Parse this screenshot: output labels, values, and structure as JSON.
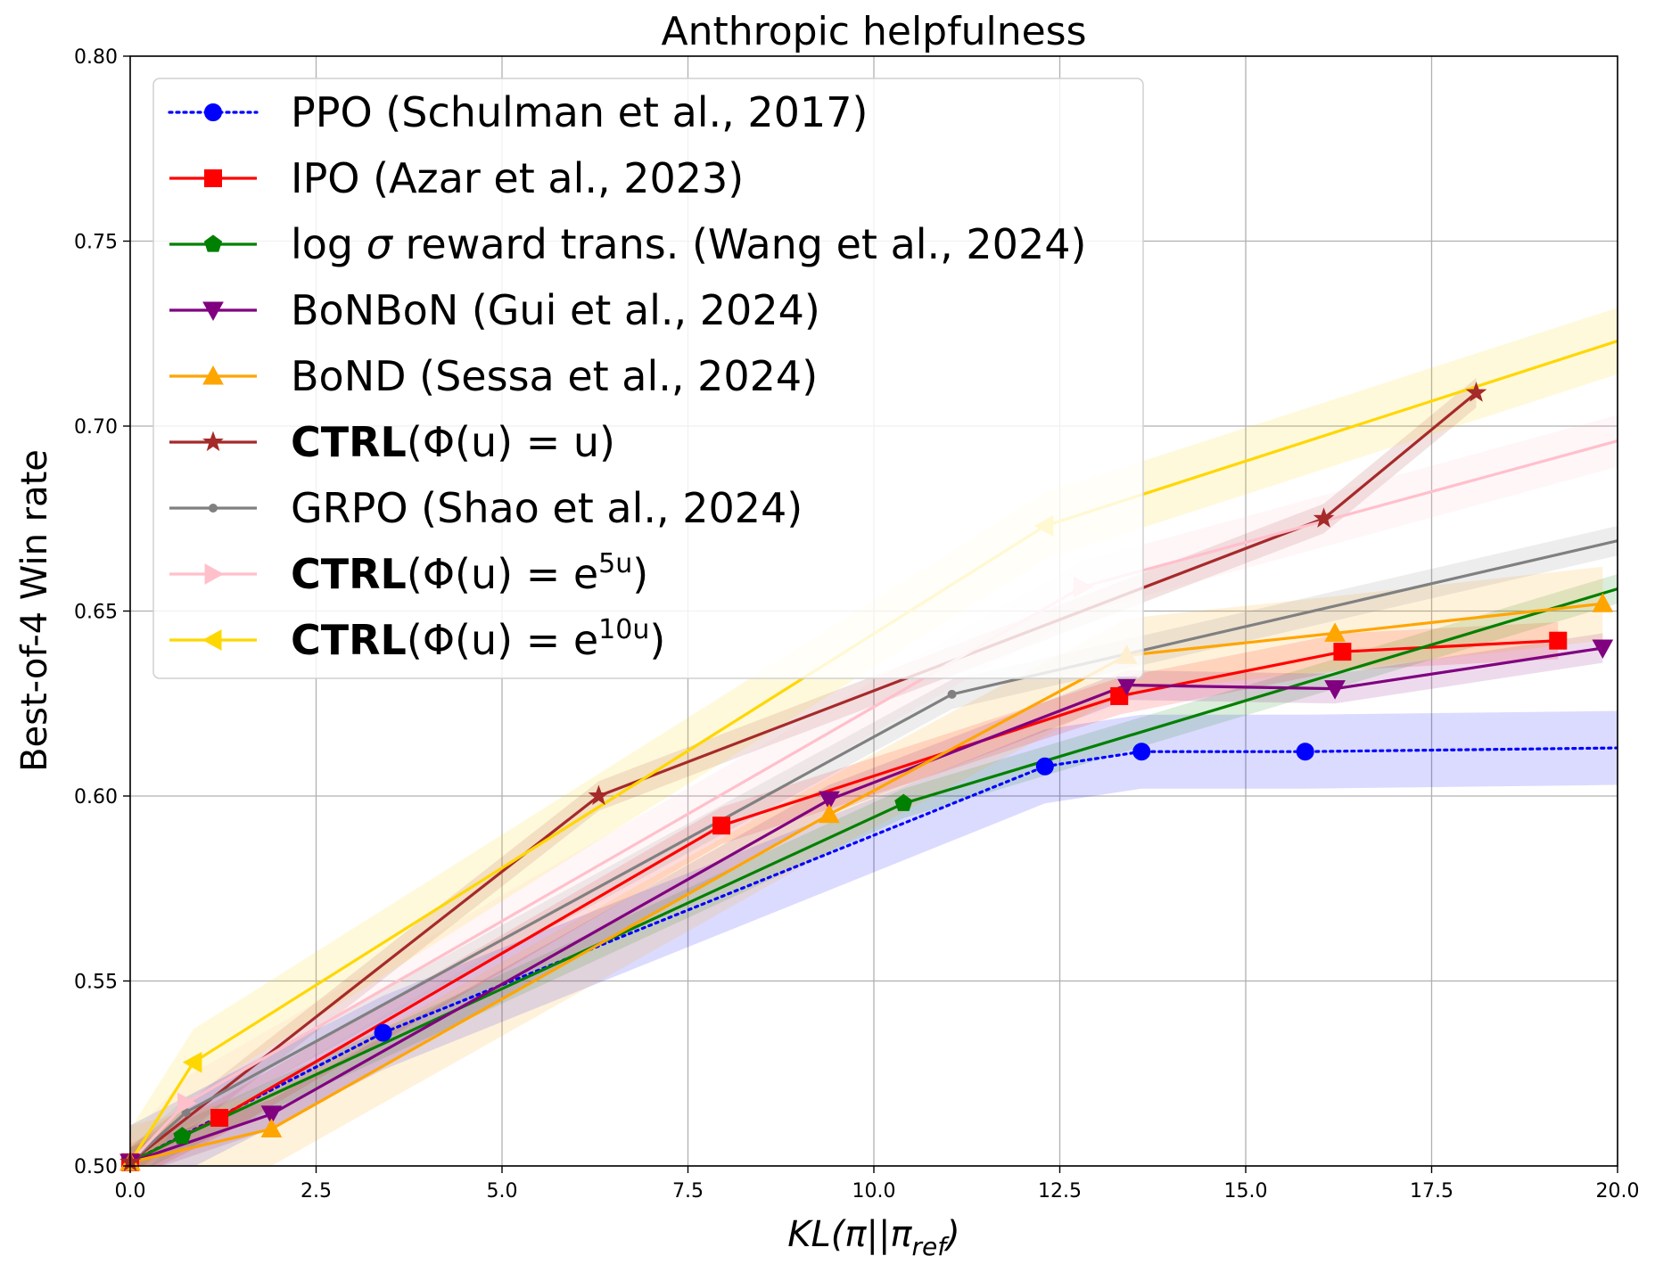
{
  "chart_data": {
    "type": "line",
    "title": "Anthropic helpfulness",
    "xlabel": "KL(π||π_ref)",
    "ylabel": "Best-of-4 Win rate",
    "xlim": [
      0,
      20
    ],
    "ylim": [
      0.5,
      0.8
    ],
    "xticks": [
      "0.0",
      "2.5",
      "5.0",
      "7.5",
      "10.0",
      "12.5",
      "15.0",
      "17.5",
      "20.0"
    ],
    "yticks": [
      "0.50",
      "0.55",
      "0.60",
      "0.65",
      "0.70",
      "0.75",
      "0.80"
    ],
    "grid": true,
    "legend_position": "top-left",
    "series": [
      {
        "name": "PPO (Schulman et al., 2017)",
        "color": "#0000ff",
        "dash": "dotted",
        "marker": "circle",
        "x": [
          0,
          3.4,
          12.3,
          13.6,
          15.8,
          20.0
        ],
        "y": [
          0.501,
          0.536,
          0.608,
          0.612,
          0.612,
          0.613
        ],
        "band": 0.01,
        "markers_drawn": [
          false,
          true,
          true,
          true,
          true,
          false
        ]
      },
      {
        "name": "IPO (Azar et al., 2023)",
        "color": "#ff0000",
        "dash": "solid",
        "marker": "square",
        "x": [
          0,
          1.2,
          7.95,
          13.3,
          16.3,
          19.2
        ],
        "y": [
          0.501,
          0.513,
          0.592,
          0.627,
          0.639,
          0.642
        ],
        "band": 0.005
      },
      {
        "name": "log σ reward trans. (Wang et al., 2024)",
        "color": "#008000",
        "dash": "solid",
        "marker": "pentagon",
        "x": [
          0,
          0.7,
          10.4,
          20.0
        ],
        "y": [
          0.501,
          0.508,
          0.598,
          0.656
        ],
        "band": 0.004,
        "markers_drawn": [
          false,
          true,
          true,
          false
        ]
      },
      {
        "name": "BoNBoN (Gui et al., 2024)",
        "color": "#800080",
        "dash": "solid",
        "marker": "triangle-down",
        "x": [
          0,
          1.9,
          9.4,
          13.4,
          16.2,
          19.8
        ],
        "y": [
          0.501,
          0.514,
          0.599,
          0.63,
          0.629,
          0.64
        ],
        "band": 0.004
      },
      {
        "name": "BoND (Sessa et al., 2024)",
        "color": "#ffa500",
        "dash": "solid",
        "marker": "triangle-up",
        "x": [
          0,
          1.9,
          9.4,
          13.4,
          16.2,
          19.8
        ],
        "y": [
          0.501,
          0.51,
          0.595,
          0.638,
          0.644,
          0.652
        ],
        "band": 0.01
      },
      {
        "name": "CTRL(Φ(u) = u)",
        "color": "#a52a2a",
        "dash": "solid",
        "marker": "star",
        "x": [
          0,
          6.3,
          16.05,
          18.1
        ],
        "y": [
          0.501,
          0.6,
          0.675,
          0.709
        ],
        "band": 0.004
      },
      {
        "name": "GRPO (Shao et al., 2024)",
        "color": "#808080",
        "dash": "solid",
        "marker": "small-dot",
        "x": [
          0,
          0.75,
          11.05,
          20.0
        ],
        "y": [
          0.501,
          0.5145,
          0.6275,
          0.669
        ],
        "band": 0.004,
        "markers_drawn": [
          false,
          true,
          true,
          false
        ]
      },
      {
        "name": "CTRL(Φ(u) = e^{5u})",
        "color": "#ffc0cb",
        "dash": "solid",
        "marker": "triangle-right",
        "x": [
          0,
          0.75,
          12.8,
          20.0
        ],
        "y": [
          0.501,
          0.517,
          0.6565,
          0.696
        ],
        "band": 0.007,
        "markers_drawn": [
          false,
          true,
          true,
          false
        ]
      },
      {
        "name": "CTRL(Φ(u) = e^{10u})",
        "color": "#ffd700",
        "dash": "solid",
        "marker": "triangle-left",
        "x": [
          0,
          0.85,
          12.3,
          20.0
        ],
        "y": [
          0.501,
          0.528,
          0.673,
          0.723
        ],
        "band": 0.009,
        "markers_drawn": [
          false,
          true,
          true,
          false
        ]
      }
    ]
  },
  "legend": {
    "ppo": "PPO (Schulman et al., 2017)",
    "ipo": "IPO (Azar et al., 2023)",
    "logsigma_prefix": "log ",
    "logsigma_symbol": "σ",
    "logsigma_suffix": " reward trans. (Wang et al., 2024)",
    "bonbon": "BoNBoN (Gui et al., 2024)",
    "bond": "BoND (Sessa et al., 2024)",
    "ctrl_bold": "CTRL",
    "ctrl_u_formula": "(Φ(u) = u)",
    "grpo": "GRPO (Shao et al., 2024)",
    "ctrl5_formula": "(Φ(u) = e",
    "ctrl5_exp": "5u",
    "ctrl10_formula": "(Φ(u) = e",
    "ctrl10_exp": "10u",
    "close_paren": ")"
  },
  "xlabel_parts": {
    "main": "KL(π||π",
    "sub": "ref",
    "close": ")"
  }
}
